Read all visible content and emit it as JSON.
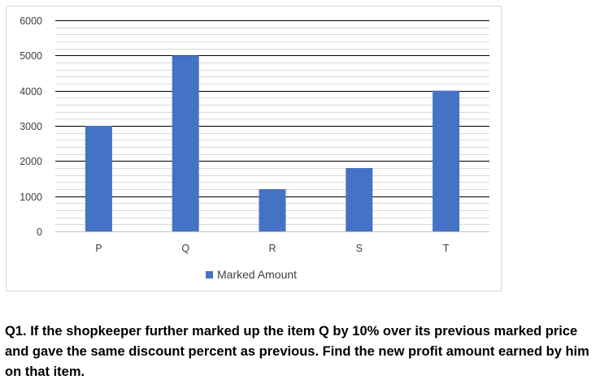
{
  "chart_data": {
    "type": "bar",
    "categories": [
      "P",
      "Q",
      "R",
      "S",
      "T"
    ],
    "series": [
      {
        "name": "Marked Amount",
        "values": [
          3000,
          5000,
          1200,
          1800,
          4000
        ]
      }
    ],
    "ylim": [
      0,
      6000
    ],
    "yticks": [
      0,
      1000,
      2000,
      3000,
      4000,
      5000,
      6000
    ],
    "ytick_labels": [
      "0",
      "1000",
      "2000",
      "3000",
      "4000",
      "5000",
      "6000"
    ],
    "bar_color": "#4472c4",
    "grid": true,
    "legend_position": "bottom"
  },
  "question": {
    "number": "Q1.",
    "text": " If the shopkeeper further marked up the item Q by 10% over its previous marked price and gave the same discount percent as previous. Find the new profit amount earned by him on that item."
  }
}
